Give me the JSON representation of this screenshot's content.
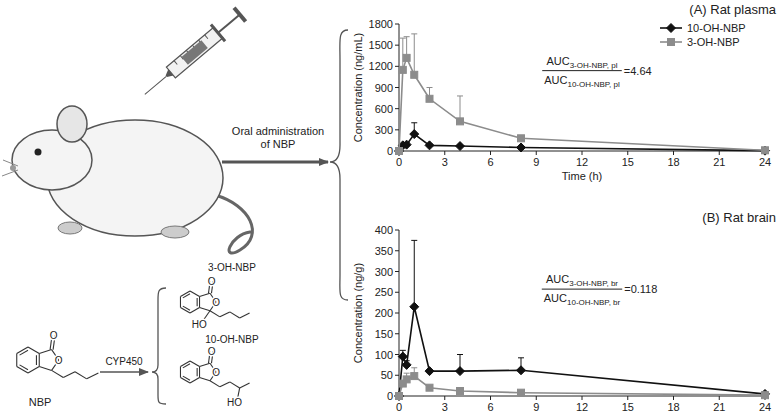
{
  "chart_data": [
    {
      "type": "line",
      "title": "(A) Rat plasma",
      "x_label": "Time (h)",
      "y_label": "Concentration (ng/mL)",
      "x": [
        0,
        0.25,
        0.5,
        1,
        2,
        4,
        8,
        24
      ],
      "series": [
        {
          "name": "10-OH-NBP",
          "color": "#111111",
          "marker": "diamond",
          "values": [
            0,
            80,
            90,
            240,
            80,
            70,
            50,
            5
          ],
          "errors": [
            0,
            10,
            30,
            160,
            20,
            10,
            10,
            0
          ]
        },
        {
          "name": "3-OH-NBP",
          "color": "#8c8c8c",
          "marker": "square",
          "values": [
            0,
            1150,
            1320,
            1080,
            740,
            420,
            180,
            10
          ],
          "errors": [
            0,
            450,
            300,
            580,
            160,
            360,
            20,
            0
          ]
        }
      ],
      "xlim": [
        0,
        24
      ],
      "xticks": [
        0,
        3,
        6,
        9,
        12,
        15,
        18,
        21,
        24
      ],
      "ylim": [
        0,
        1800
      ],
      "yticks": [
        0,
        300,
        600,
        900,
        1200,
        1500,
        1800
      ],
      "legend": "top-right",
      "annotation": {
        "numerator": "AUC",
        "numerator_sub": "3-OH-NBP, pl",
        "denominator": "AUC",
        "denominator_sub": "10-OH-NBP, pl",
        "result": "=4.64"
      }
    },
    {
      "type": "line",
      "title": "(B) Rat brain",
      "y_label": "Concentration (ng/g)",
      "x": [
        0,
        0.25,
        0.5,
        1,
        2,
        4,
        8,
        24
      ],
      "series": [
        {
          "name": "10-OH-NBP",
          "color": "#111111",
          "marker": "diamond",
          "values": [
            0,
            95,
            75,
            215,
            60,
            60,
            62,
            5
          ],
          "errors": [
            0,
            15,
            10,
            160,
            0,
            40,
            30,
            3
          ]
        },
        {
          "name": "3-OH-NBP",
          "color": "#8c8c8c",
          "marker": "square",
          "values": [
            0,
            30,
            40,
            48,
            20,
            12,
            8,
            2
          ],
          "errors": [
            0,
            5,
            15,
            20,
            5,
            3,
            2,
            0
          ]
        }
      ],
      "xlim": [
        0,
        24
      ],
      "xticks": [
        0,
        3,
        6,
        9,
        12,
        15,
        18,
        21,
        24
      ],
      "ylim": [
        0,
        400
      ],
      "yticks": [
        0,
        50,
        100,
        150,
        200,
        250,
        300,
        350,
        400
      ],
      "annotation": {
        "numerator": "AUC",
        "numerator_sub": "3-OH-NBP, br",
        "denominator": "AUC",
        "denominator_sub": "10-OH-NBP, br",
        "result": "=0.118"
      }
    }
  ],
  "diagram": {
    "route_label": [
      "Oral administration",
      "of NBP"
    ],
    "enzyme": "CYP450",
    "parent": "NBP",
    "metabolites": [
      "3-OH-NBP",
      "10-OH-NBP"
    ],
    "atoms": {
      "oxygen": "O",
      "hydroxyl": "HO"
    }
  }
}
